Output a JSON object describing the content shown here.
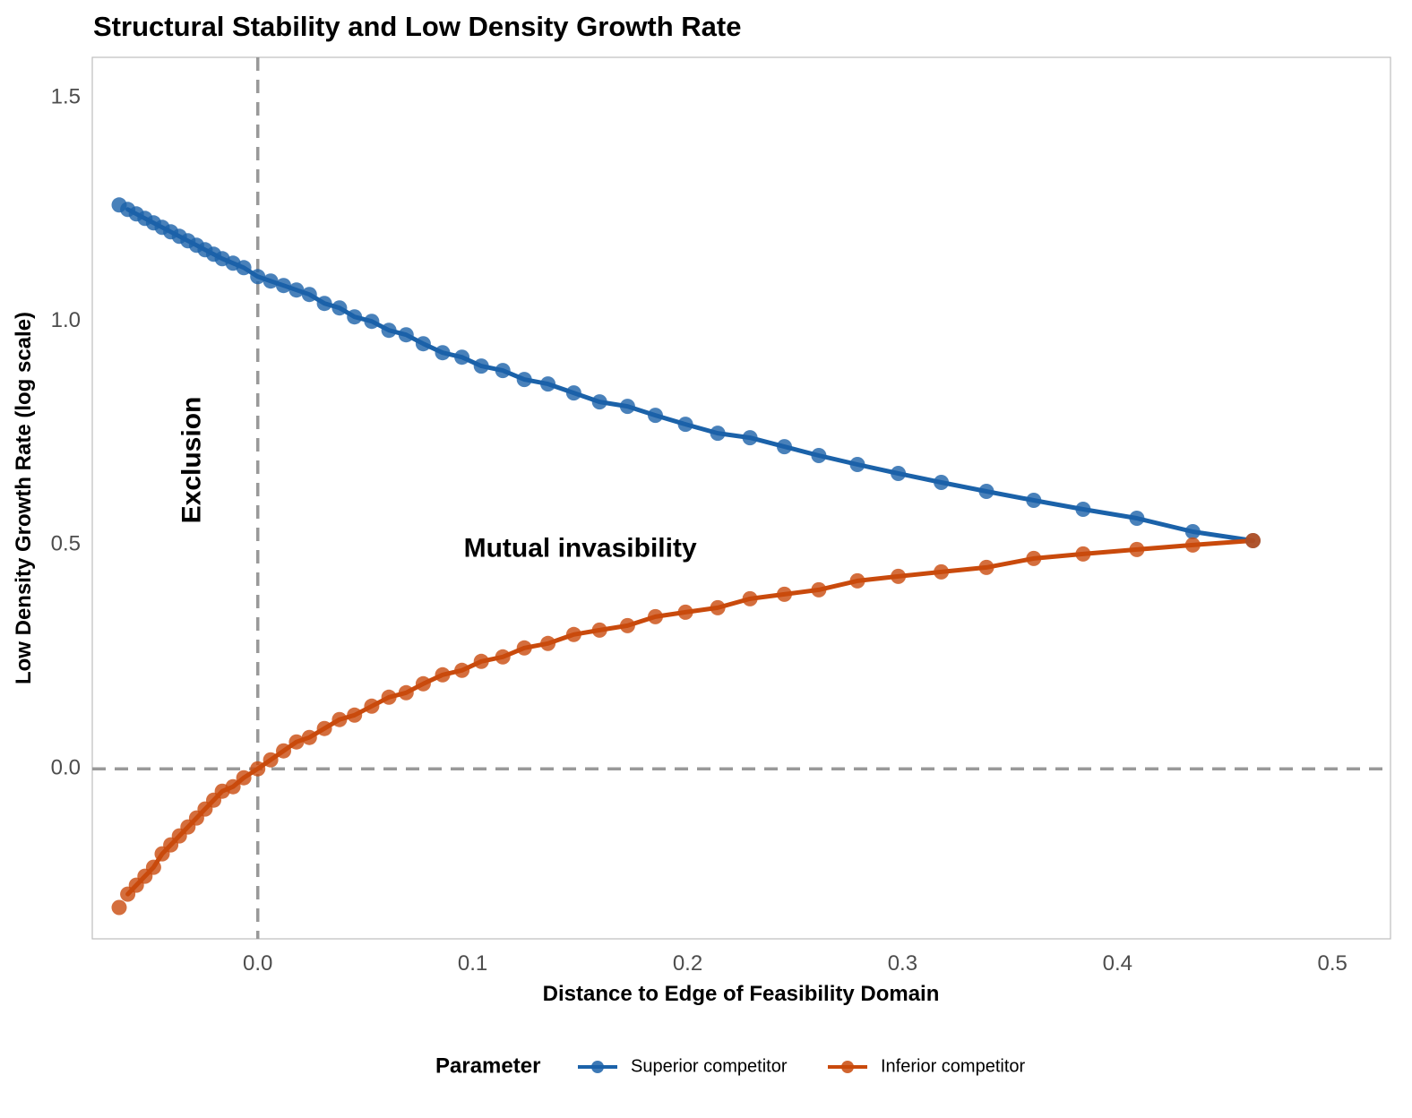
{
  "chart_data": {
    "type": "line",
    "title": "Structural Stability and Low Density Growth Rate",
    "xlabel": "Distance to Edge of Feasibility Domain",
    "ylabel": "Low Density Growth Rate (log scale)",
    "xlim": [
      -0.077,
      0.527
    ],
    "ylim": [
      -0.38,
      1.59
    ],
    "x_ticks": [
      0.0,
      0.1,
      0.2,
      0.3,
      0.4,
      0.5
    ],
    "x_tick_labels": [
      "0.0",
      "0.1",
      "0.2",
      "0.3",
      "0.4",
      "0.5"
    ],
    "y_ticks": [
      0.0,
      0.5,
      1.0,
      1.5
    ],
    "y_tick_labels": [
      "0.0",
      "0.5",
      "1.0",
      "1.5"
    ],
    "grid": false,
    "reference_lines": {
      "horizontal_y": 0.0,
      "vertical_x": 0.0,
      "style": "dashed",
      "color": "#999999"
    },
    "annotations": [
      {
        "text": "Exclusion",
        "x": -0.03,
        "y": 0.69,
        "rotation": -90
      },
      {
        "text": "Mutual invasibility",
        "x": 0.15,
        "y": 0.49,
        "rotation": 0
      }
    ],
    "legend": {
      "title": "Parameter",
      "position": "bottom",
      "entries": [
        "Superior competitor",
        "Inferior competitor"
      ]
    },
    "series": [
      {
        "name": "Superior competitor",
        "color": "#1b62a9",
        "x": [
          -0.0645,
          -0.0605,
          -0.0565,
          -0.0525,
          -0.0485,
          -0.0445,
          -0.0405,
          -0.0365,
          -0.0325,
          -0.0285,
          -0.0245,
          -0.0205,
          -0.0165,
          -0.0115,
          -0.0065,
          0.0,
          0.006,
          0.012,
          0.018,
          0.024,
          0.031,
          0.038,
          0.045,
          0.053,
          0.061,
          0.069,
          0.077,
          0.086,
          0.095,
          0.104,
          0.114,
          0.124,
          0.135,
          0.147,
          0.159,
          0.172,
          0.185,
          0.199,
          0.214,
          0.229,
          0.245,
          0.261,
          0.279,
          0.298,
          0.318,
          0.339,
          0.361,
          0.384,
          0.409,
          0.435,
          0.463
        ],
        "y": [
          1.26,
          1.25,
          1.24,
          1.23,
          1.22,
          1.21,
          1.2,
          1.19,
          1.18,
          1.17,
          1.16,
          1.15,
          1.14,
          1.13,
          1.12,
          1.1,
          1.09,
          1.08,
          1.07,
          1.06,
          1.04,
          1.03,
          1.01,
          1.0,
          0.98,
          0.97,
          0.95,
          0.93,
          0.92,
          0.9,
          0.89,
          0.87,
          0.86,
          0.84,
          0.82,
          0.81,
          0.79,
          0.77,
          0.75,
          0.74,
          0.72,
          0.7,
          0.68,
          0.66,
          0.64,
          0.62,
          0.6,
          0.58,
          0.56,
          0.53,
          0.51
        ]
      },
      {
        "name": "Inferior competitor",
        "color": "#c94a0c",
        "x": [
          -0.0645,
          -0.0605,
          -0.0565,
          -0.0525,
          -0.0485,
          -0.0445,
          -0.0405,
          -0.0365,
          -0.0325,
          -0.0285,
          -0.0245,
          -0.0205,
          -0.0165,
          -0.0115,
          -0.0065,
          0.0,
          0.006,
          0.012,
          0.018,
          0.024,
          0.031,
          0.038,
          0.045,
          0.053,
          0.061,
          0.069,
          0.077,
          0.086,
          0.095,
          0.104,
          0.114,
          0.124,
          0.135,
          0.147,
          0.159,
          0.172,
          0.185,
          0.199,
          0.214,
          0.229,
          0.245,
          0.261,
          0.279,
          0.298,
          0.318,
          0.339,
          0.361,
          0.384,
          0.409,
          0.435,
          0.463
        ],
        "y": [
          -0.31,
          -0.28,
          -0.26,
          -0.24,
          -0.22,
          -0.19,
          -0.17,
          -0.15,
          -0.13,
          -0.11,
          -0.09,
          -0.07,
          -0.05,
          -0.04,
          -0.02,
          0.0,
          0.02,
          0.04,
          0.06,
          0.07,
          0.09,
          0.11,
          0.12,
          0.14,
          0.16,
          0.17,
          0.19,
          0.21,
          0.22,
          0.24,
          0.25,
          0.27,
          0.28,
          0.3,
          0.31,
          0.32,
          0.34,
          0.35,
          0.36,
          0.38,
          0.39,
          0.4,
          0.42,
          0.43,
          0.44,
          0.45,
          0.47,
          0.48,
          0.49,
          0.5,
          0.51
        ]
      }
    ]
  }
}
